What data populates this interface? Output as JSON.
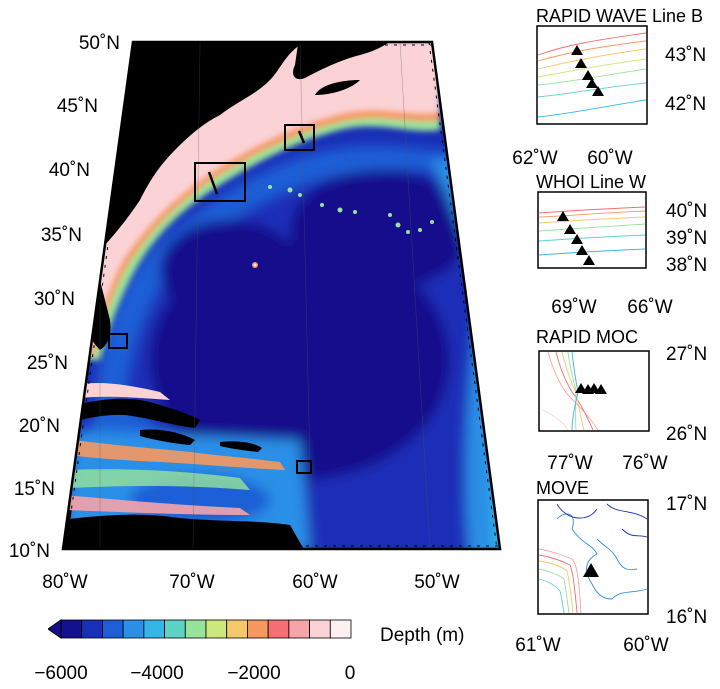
{
  "main_map": {
    "lat_labels": [
      "50˚N",
      "45˚N",
      "40˚N",
      "35˚N",
      "30˚N",
      "25˚N",
      "20˚N",
      "15˚N",
      "10˚N"
    ],
    "lon_labels": [
      "80˚W",
      "70˚W",
      "60˚W",
      "50˚W"
    ],
    "study_boxes": [
      "RAPID WAVE Line B",
      "WHOI Line W",
      "RAPID MOC",
      "MOVE"
    ]
  },
  "colorbar": {
    "label": "Depth (m)",
    "ticks": [
      "−6000",
      "−4000",
      "−2000",
      "0"
    ],
    "colors": [
      "#12108c",
      "#1a2fb8",
      "#1e5fd6",
      "#2a8fe6",
      "#35b6e8",
      "#5dd3c8",
      "#98e39a",
      "#cde87a",
      "#f5c96a",
      "#f7985e",
      "#f46e72",
      "#f7a3aa",
      "#fbd3d6",
      "#fdf0f0"
    ]
  },
  "insets": [
    {
      "title": "RAPID WAVE Line B",
      "lat_ticks": [
        "43˚N",
        "42˚N"
      ],
      "lon_ticks": [
        "62˚W",
        "60˚W"
      ]
    },
    {
      "title": "WHOI Line W",
      "lat_ticks": [
        "40˚N",
        "39˚N",
        "38˚N"
      ],
      "lon_ticks": [
        "69˚W",
        "66˚W"
      ]
    },
    {
      "title": "RAPID MOC",
      "lat_ticks": [
        "27˚N",
        "26˚N"
      ],
      "lon_ticks": [
        "77˚W",
        "76˚W"
      ]
    },
    {
      "title": "MOVE",
      "lat_ticks": [
        "17˚N",
        "16˚N"
      ],
      "lon_ticks": [
        "61˚W",
        "60˚W"
      ]
    }
  ]
}
